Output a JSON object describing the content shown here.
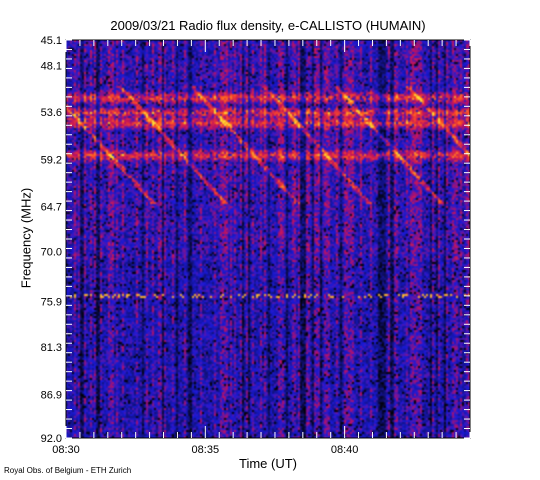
{
  "chart_data": {
    "type": "heatmap",
    "title": "2009/03/21  Radio flux density, e-CALLISTO (HUMAIN)",
    "xlabel": "Time (UT)",
    "ylabel": "Frequency (MHz)",
    "credit": "Royal Obs. of Belgium - ETH Zurich",
    "x_ticks": [
      "08:30",
      "08:35",
      "08:40"
    ],
    "y_ticks": [
      "45.1",
      "48.1",
      "53.6",
      "59.2",
      "64.7",
      "70.0",
      "75.9",
      "81.3",
      "86.9",
      "92.0"
    ],
    "x_range_minutes": [
      0,
      14.5
    ],
    "y_range_mhz": [
      45.1,
      92.0
    ],
    "colormap": [
      "#000000",
      "#10106e",
      "#1a1ad8",
      "#c01060",
      "#ff5020",
      "#ffe030"
    ],
    "bright_bands_mhz": [
      51.8,
      53.6,
      54.8,
      58.6
    ],
    "interference_band_mhz": 75.2
  }
}
